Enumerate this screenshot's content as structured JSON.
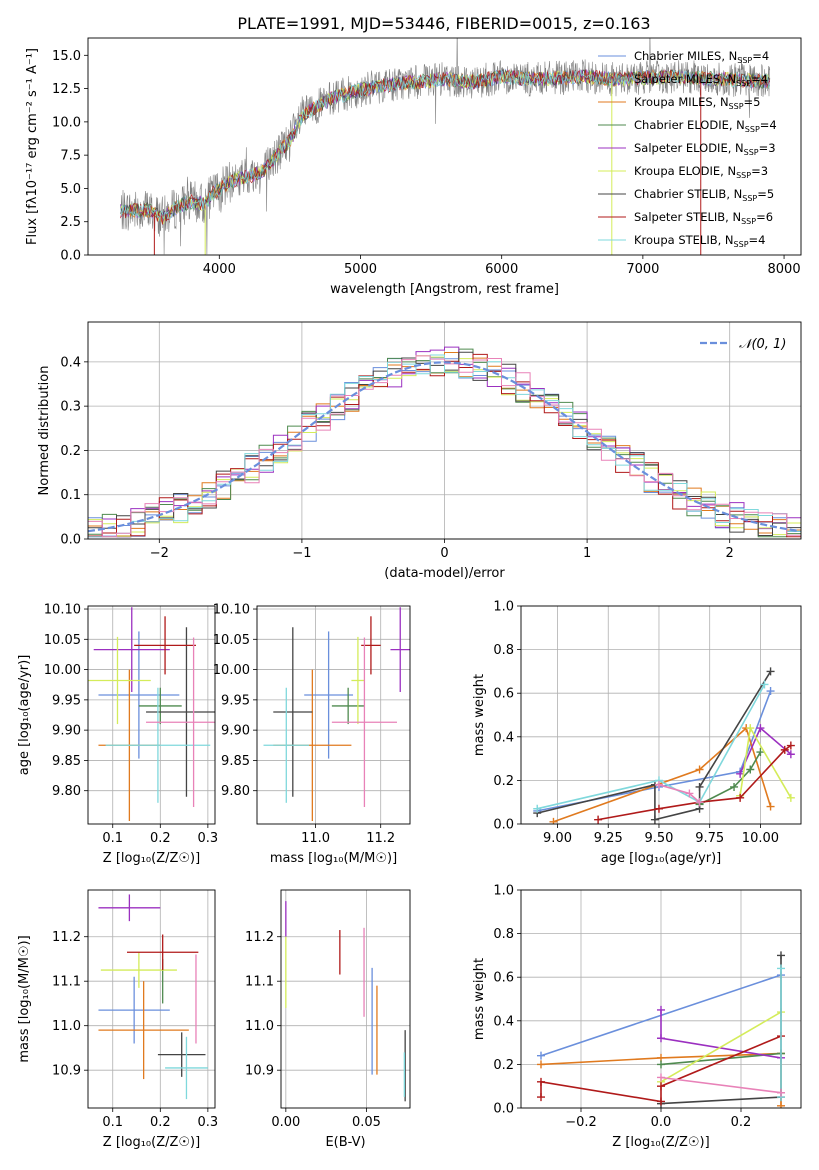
{
  "figure_title": "PLATE=1991, MJD=53446, FIBERID=0015, z=0.163",
  "colors": {
    "Chabrier MILES": "#6a8fdc",
    "Salpeter MILES": "#7f7f7f",
    "Kroupa MILES": "#e07a1f",
    "Chabrier ELODIE": "#4f8a4f",
    "Salpeter ELODIE": "#9b30c0",
    "Kroupa ELODIE": "#d4ec5a",
    "Chabrier STELIB": "#444444",
    "Salpeter STELIB": "#b01a1a",
    "Kroupa STELIB": "#7fd8dc",
    "pink": "#e882b8"
  },
  "chart_data": [
    {
      "type": "line",
      "id": "spectrum",
      "title": "PLATE=1991, MJD=53446, FIBERID=0015, z=0.163",
      "xlabel": "wavelength [Angstrom, rest frame]",
      "ylabel": "Flux [fλ10⁻¹⁷ erg cm⁻² s⁻¹ A⁻¹]",
      "xlim": [
        3070,
        8120
      ],
      "ylim": [
        0,
        16.3
      ],
      "xticks": [
        4000,
        5000,
        6000,
        7000,
        8000
      ],
      "yticks": [
        0.0,
        2.5,
        5.0,
        7.5,
        10.0,
        12.5,
        15.0
      ],
      "legend_position": "right",
      "legend": [
        "Chabrier MILES, N_SSP=4",
        "Salpeter MILES, N_SSP=4",
        "Kroupa MILES, N_SSP=5",
        "Chabrier ELODIE, N_SSP=4",
        "Salpeter ELODIE, N_SSP=3",
        "Kroupa ELODIE, N_SSP=3",
        "Chabrier STELIB, N_SSP=5",
        "Salpeter STELIB, N_SSP=6",
        "Kroupa STELIB, N_SSP=4"
      ],
      "continuum": [
        [
          3300,
          3.3
        ],
        [
          3500,
          3.4
        ],
        [
          3600,
          2.8
        ],
        [
          3700,
          3.6
        ],
        [
          3800,
          4.0
        ],
        [
          3900,
          3.8
        ],
        [
          3950,
          4.6
        ],
        [
          4100,
          5.6
        ],
        [
          4300,
          6.2
        ],
        [
          4500,
          8.6
        ],
        [
          4600,
          10.6
        ],
        [
          4800,
          11.8
        ],
        [
          5000,
          12.4
        ],
        [
          5200,
          12.8
        ],
        [
          5400,
          13.0
        ],
        [
          5600,
          13.2
        ],
        [
          5800,
          13.0
        ],
        [
          6000,
          13.4
        ],
        [
          6200,
          13.2
        ],
        [
          6400,
          13.3
        ],
        [
          6600,
          13.4
        ],
        [
          6800,
          13.2
        ],
        [
          7000,
          13.3
        ],
        [
          7200,
          13.4
        ],
        [
          7400,
          13.3
        ],
        [
          7600,
          13.2
        ],
        [
          7900,
          13.0
        ]
      ]
    },
    {
      "type": "line",
      "id": "residuals",
      "xlabel": "(data-model)/error",
      "ylabel": "Normed distribution",
      "xlim": [
        -2.5,
        2.5
      ],
      "ylim": [
        0,
        0.49
      ],
      "xticks": [
        -2,
        -1,
        0,
        1,
        2
      ],
      "yticks": [
        0.0,
        0.1,
        0.2,
        0.3,
        0.4
      ],
      "grid": true,
      "legend_position": "top-right",
      "series": [
        {
          "name": "𝒩(0, 1)",
          "kind": "gaussian",
          "mu": 0,
          "sigma": 1
        }
      ]
    },
    {
      "type": "scatter",
      "id": "age_vs_Z",
      "xlabel": "Z [log₁₀(Z/Z☉)]",
      "ylabel": "age  [log₁₀(age/yr)]",
      "xlim": [
        0.048,
        0.315
      ],
      "ylim": [
        9.745,
        10.105
      ],
      "xticks": [
        0.1,
        0.2,
        0.3
      ],
      "yticks": [
        9.8,
        9.85,
        9.9,
        9.95,
        10.0,
        10.05,
        10.1
      ],
      "grid": true,
      "points": [
        {
          "c": "Chabrier MILES",
          "x": 0.155,
          "xe": 0.085,
          "y": 9.958,
          "ye": 0.105
        },
        {
          "c": "Kroupa MILES",
          "x": 0.135,
          "xe": 0.065,
          "y": 9.875,
          "ye": 0.125
        },
        {
          "c": "Chabrier ELODIE",
          "x": 0.2,
          "xe": 0.045,
          "y": 9.94,
          "ye": 0.03
        },
        {
          "c": "Salpeter ELODIE",
          "x": 0.14,
          "xe": 0.08,
          "y": 10.033,
          "ye": 0.07
        },
        {
          "c": "Kroupa ELODIE",
          "x": 0.11,
          "xe": 0.07,
          "y": 9.982,
          "ye": 0.072
        },
        {
          "c": "Chabrier STELIB",
          "x": 0.255,
          "xe": 0.085,
          "y": 9.93,
          "ye": 0.14
        },
        {
          "c": "Salpeter STELIB",
          "x": 0.21,
          "xe": 0.065,
          "y": 10.04,
          "ye": 0.048
        },
        {
          "c": "Kroupa STELIB",
          "x": 0.195,
          "xe": 0.11,
          "y": 9.875,
          "ye": 0.095
        },
        {
          "c": "pink",
          "x": 0.27,
          "xe": 0.1,
          "y": 9.913,
          "ye": 0.14
        }
      ]
    },
    {
      "type": "scatter",
      "id": "age_vs_mass",
      "xlabel": "mass [log₁₀(M/M☉)]",
      "ylabel": "",
      "xlim": [
        10.82,
        11.29
      ],
      "ylim": [
        9.745,
        10.105
      ],
      "xticks": [
        11.0,
        11.2
      ],
      "yticks": [
        9.8,
        9.85,
        9.9,
        9.95,
        10.0,
        10.05,
        10.1
      ],
      "grid": true,
      "points": [
        {
          "c": "Chabrier MILES",
          "x": 11.04,
          "xe": 0.075,
          "y": 9.958,
          "ye": 0.105
        },
        {
          "c": "Kroupa MILES",
          "x": 10.99,
          "xe": 0.12,
          "y": 9.875,
          "ye": 0.125
        },
        {
          "c": "Chabrier ELODIE",
          "x": 11.1,
          "xe": 0.05,
          "y": 9.94,
          "ye": 0.03
        },
        {
          "c": "Salpeter ELODIE",
          "x": 11.26,
          "xe": 0.03,
          "y": 10.033,
          "ye": 0.07
        },
        {
          "c": "Kroupa ELODIE",
          "x": 11.13,
          "xe": 0.02,
          "y": 9.982,
          "ye": 0.072
        },
        {
          "c": "Chabrier STELIB",
          "x": 10.93,
          "xe": 0.06,
          "y": 9.93,
          "ye": 0.14
        },
        {
          "c": "Salpeter STELIB",
          "x": 11.17,
          "xe": 0.03,
          "y": 10.04,
          "ye": 0.048
        },
        {
          "c": "Kroupa STELIB",
          "x": 10.91,
          "xe": 0.07,
          "y": 9.875,
          "ye": 0.095
        },
        {
          "c": "pink",
          "x": 11.15,
          "xe": 0.1,
          "y": 9.913,
          "ye": 0.14
        }
      ]
    },
    {
      "type": "line",
      "id": "weight_vs_age",
      "xlabel": "age  [log₁₀(age/yr)]",
      "ylabel": "mass weight",
      "xlim": [
        8.82,
        10.2
      ],
      "ylim": [
        0,
        1.0
      ],
      "xticks": [
        9.0,
        9.25,
        9.5,
        9.75,
        10.0
      ],
      "yticks": [
        0.0,
        0.2,
        0.4,
        0.6,
        0.8,
        1.0
      ],
      "grid": true,
      "series": [
        {
          "c": "Chabrier MILES",
          "x": [
            8.9,
            9.5,
            9.9,
            10.05
          ],
          "y": [
            0.06,
            0.17,
            0.24,
            0.61
          ]
        },
        {
          "c": "Kroupa MILES",
          "x": [
            8.98,
            9.7,
            9.93,
            10.05
          ],
          "y": [
            0.01,
            0.25,
            0.44,
            0.08
          ]
        },
        {
          "c": "Chabrier ELODIE",
          "x": [
            9.7,
            9.87,
            9.95,
            10.0
          ],
          "y": [
            0.09,
            0.17,
            0.25,
            0.33
          ]
        },
        {
          "c": "Salpeter ELODIE",
          "x": [
            9.9,
            10.0,
            10.15
          ],
          "y": [
            0.23,
            0.44,
            0.32
          ]
        },
        {
          "c": "Kroupa ELODIE",
          "x": [
            9.9,
            9.95,
            10.15
          ],
          "y": [
            0.13,
            0.44,
            0.12
          ]
        },
        {
          "c": "Chabrier STELIB",
          "x": [
            8.9,
            9.48,
            9.48,
            9.7,
            9.7,
            10.05
          ],
          "y": [
            0.05,
            0.18,
            0.02,
            0.07,
            0.17,
            0.7
          ]
        },
        {
          "c": "Salpeter STELIB",
          "x": [
            9.2,
            9.5,
            9.7,
            9.9,
            10.12,
            10.15
          ],
          "y": [
            0.02,
            0.07,
            0.1,
            0.12,
            0.34,
            0.36
          ]
        },
        {
          "c": "Kroupa STELIB",
          "x": [
            8.9,
            9.5,
            9.7,
            10.02
          ],
          "y": [
            0.07,
            0.2,
            0.1,
            0.64
          ]
        },
        {
          "c": "pink",
          "x": [
            9.5,
            9.65,
            9.7
          ],
          "y": [
            0.18,
            0.14,
            0.1
          ]
        }
      ]
    },
    {
      "type": "scatter",
      "id": "mass_vs_Z",
      "xlabel": "Z [log₁₀(Z/Z☉)]",
      "ylabel": "mass [log₁₀(M/M☉)]",
      "xlim": [
        0.048,
        0.315
      ],
      "ylim": [
        10.815,
        11.305
      ],
      "xticks": [
        0.1,
        0.2,
        0.3
      ],
      "yticks": [
        10.9,
        11.0,
        11.1,
        11.2
      ],
      "grid": true,
      "points": [
        {
          "c": "Chabrier MILES",
          "x": 0.145,
          "xe": 0.075,
          "y": 11.035,
          "ye": 0.075
        },
        {
          "c": "Kroupa MILES",
          "x": 0.165,
          "xe": 0.095,
          "y": 10.99,
          "ye": 0.11
        },
        {
          "c": "Chabrier ELODIE",
          "x": 0.205,
          "xe": 0.0,
          "y": 11.1,
          "ye": 0.05
        },
        {
          "c": "Salpeter ELODIE",
          "x": 0.135,
          "xe": 0.065,
          "y": 11.265,
          "ye": 0.03
        },
        {
          "c": "Kroupa ELODIE",
          "x": 0.155,
          "xe": 0.08,
          "y": 11.125,
          "ye": 0.04
        },
        {
          "c": "Chabrier STELIB",
          "x": 0.245,
          "xe": 0.05,
          "y": 10.935,
          "ye": 0.05
        },
        {
          "c": "Salpeter STELIB",
          "x": 0.205,
          "xe": 0.075,
          "y": 11.165,
          "ye": 0.04
        },
        {
          "c": "Kroupa STELIB",
          "x": 0.255,
          "xe": 0.045,
          "y": 10.905,
          "ye": 0.07
        },
        {
          "c": "pink",
          "x": 0.275,
          "xe": 0.0,
          "y": 11.06,
          "ye": 0.1
        }
      ]
    },
    {
      "type": "scatter",
      "id": "mass_vs_EBV",
      "xlabel": "E(B-V)",
      "ylabel": "",
      "xlim": [
        -0.003,
        0.077
      ],
      "ylim": [
        10.815,
        11.305
      ],
      "xticks": [
        0.0,
        0.05
      ],
      "yticks": [
        10.9,
        11.0,
        11.1,
        11.2
      ],
      "grid": true,
      "points": [
        {
          "c": "Chabrier MILES",
          "x": 0.0535,
          "y": 11.01,
          "ye": 0.12
        },
        {
          "c": "Kroupa MILES",
          "x": 0.0565,
          "y": 10.99,
          "ye": 0.1
        },
        {
          "c": "Salpeter ELODIE",
          "x": 0.0,
          "y": 11.24,
          "ye": 0.04
        },
        {
          "c": "Kroupa ELODIE",
          "x": 0.0,
          "y": 11.12,
          "ye": 0.08
        },
        {
          "c": "Chabrier STELIB",
          "x": 0.074,
          "y": 10.91,
          "ye": 0.08
        },
        {
          "c": "Salpeter STELIB",
          "x": 0.0335,
          "y": 11.165,
          "ye": 0.05
        },
        {
          "c": "Kroupa STELIB",
          "x": 0.0735,
          "y": 10.89,
          "ye": 0.05
        },
        {
          "c": "pink",
          "x": 0.0485,
          "y": 11.12,
          "ye": 0.1
        }
      ]
    },
    {
      "type": "line",
      "id": "weight_vs_Z",
      "xlabel": "Z [log₁₀(Z/Z☉)]",
      "ylabel": "mass weight",
      "xlim": [
        -0.35,
        0.35
      ],
      "ylim": [
        0,
        1.0
      ],
      "xticks": [
        -0.2,
        0.0,
        0.2
      ],
      "yticks": [
        0.0,
        0.2,
        0.4,
        0.6,
        0.8,
        1.0
      ],
      "grid": true,
      "series": [
        {
          "c": "Chabrier MILES",
          "x": [
            -0.3,
            0.3
          ],
          "y": [
            0.24,
            0.61
          ]
        },
        {
          "c": "Kroupa MILES",
          "x": [
            -0.3,
            0.0,
            0.3,
            0.3
          ],
          "y": [
            0.2,
            0.23,
            0.25,
            0.01
          ]
        },
        {
          "c": "Chabrier ELODIE",
          "x": [
            0.0,
            0.3
          ],
          "y": [
            0.2,
            0.25
          ]
        },
        {
          "c": "Salpeter ELODIE",
          "x": [
            0.0,
            0.0,
            0.3
          ],
          "y": [
            0.45,
            0.32,
            0.23
          ]
        },
        {
          "c": "Kroupa ELODIE",
          "x": [
            0.0,
            0.3
          ],
          "y": [
            0.12,
            0.44
          ]
        },
        {
          "c": "Chabrier STELIB",
          "x": [
            0.0,
            0.3,
            0.3
          ],
          "y": [
            0.02,
            0.05,
            0.7
          ]
        },
        {
          "c": "Salpeter STELIB",
          "x": [
            -0.3,
            -0.3,
            0.0,
            0.0,
            0.3
          ],
          "y": [
            0.05,
            0.12,
            0.03,
            0.1,
            0.33
          ]
        },
        {
          "c": "Kroupa STELIB",
          "x": [
            0.3,
            0.3
          ],
          "y": [
            0.05,
            0.64
          ]
        },
        {
          "c": "pink",
          "x": [
            0.0,
            0.3
          ],
          "y": [
            0.14,
            0.07
          ]
        }
      ]
    }
  ]
}
